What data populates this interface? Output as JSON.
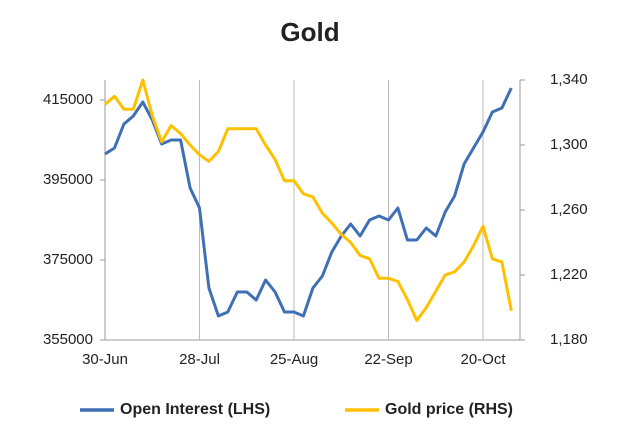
{
  "chart_data": {
    "type": "line",
    "title": "Gold",
    "categories": [
      "30-Jun",
      null,
      null,
      null,
      null,
      null,
      null,
      null,
      null,
      null,
      "28-Jul",
      null,
      null,
      null,
      null,
      null,
      null,
      null,
      null,
      null,
      "25-Aug",
      null,
      null,
      null,
      null,
      null,
      null,
      null,
      null,
      null,
      "22-Sep",
      null,
      null,
      null,
      null,
      null,
      null,
      null,
      null,
      null,
      "20-Oct",
      null,
      null,
      null
    ],
    "series": [
      {
        "name": "Open Interest (LHS)",
        "color": "#3f6fb5",
        "axis": "y",
        "values": [
          401500,
          403000,
          409000,
          411000,
          414500,
          410000,
          404000,
          405000,
          405000,
          393000,
          388000,
          368000,
          361000,
          362000,
          367000,
          367000,
          365000,
          370000,
          367000,
          362000,
          362000,
          361000,
          368000,
          371000,
          377000,
          381000,
          384000,
          381000,
          385000,
          386000,
          385000,
          388000,
          380000,
          380000,
          383000,
          381000,
          387000,
          391000,
          399000,
          403000,
          407000,
          412000,
          413000,
          418000
        ]
      },
      {
        "name": "Gold price (RHS)",
        "color": "#ffc000",
        "axis": "y2",
        "values": [
          1325,
          1330,
          1322,
          1322,
          1340,
          1318,
          1302,
          1312,
          1307,
          1300,
          1294,
          1290,
          1296,
          1310,
          1310,
          1310,
          1310,
          1300,
          1291,
          1278,
          1278,
          1270,
          1268,
          1258,
          1252,
          1245,
          1240,
          1232,
          1230,
          1218,
          1218,
          1216,
          1205,
          1192,
          1200,
          1210,
          1220,
          1222,
          1228,
          1238,
          1250,
          1230,
          1228,
          1198
        ]
      }
    ],
    "ylim": [
      355000,
      420000
    ],
    "yticks": [
      355000,
      375000,
      395000,
      415000
    ],
    "y2lim": [
      1180,
      1340
    ],
    "y2ticks": [
      {
        "value": 1180,
        "label": "1,180"
      },
      {
        "value": 1220,
        "label": "1,220"
      },
      {
        "value": 1260,
        "label": "1,260"
      },
      {
        "value": 1300,
        "label": "1,300"
      },
      {
        "value": 1340,
        "label": "1,340"
      }
    ],
    "grid": true,
    "legend": "bottom"
  }
}
